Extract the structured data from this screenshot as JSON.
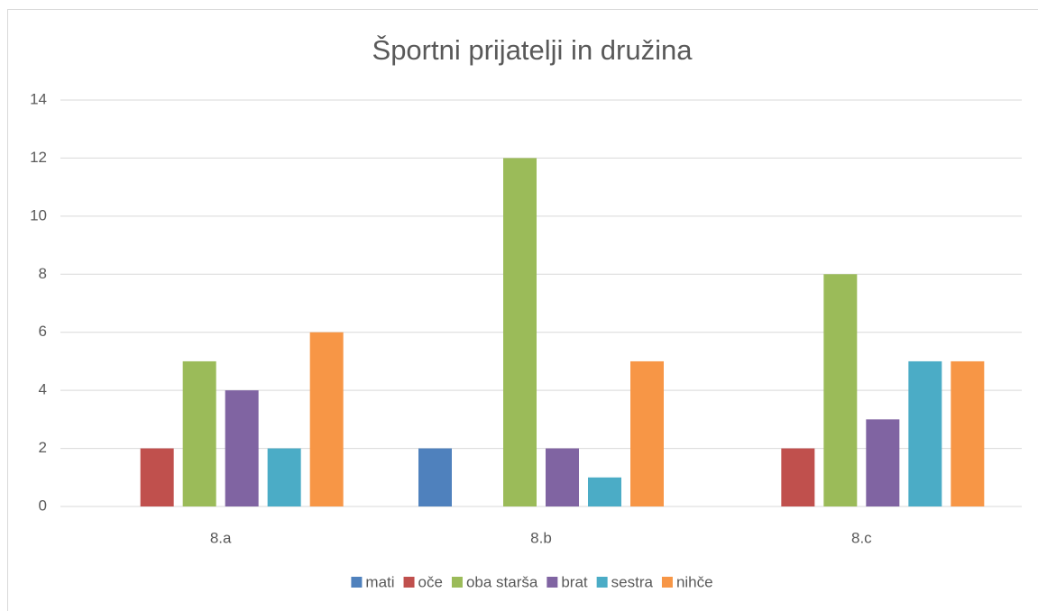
{
  "chart_data": {
    "type": "bar",
    "title": "Športni prijatelji in družina",
    "categories": [
      "8.a",
      "8.b",
      "8.c"
    ],
    "series": [
      {
        "name": "mati",
        "color": "#4f81bd",
        "values": [
          0,
          2,
          0
        ]
      },
      {
        "name": "oče",
        "color": "#c0504d",
        "values": [
          2,
          0,
          2
        ]
      },
      {
        "name": "oba starša",
        "color": "#9bbb59",
        "values": [
          5,
          12,
          8
        ]
      },
      {
        "name": "brat",
        "color": "#8064a2",
        "values": [
          4,
          2,
          3
        ]
      },
      {
        "name": "sestra",
        "color": "#4bacc6",
        "values": [
          2,
          1,
          5
        ]
      },
      {
        "name": "nihče",
        "color": "#f79646",
        "values": [
          6,
          5,
          5
        ]
      }
    ],
    "ylim": [
      0,
      14
    ],
    "yticks": [
      0,
      2,
      4,
      6,
      8,
      10,
      12,
      14
    ],
    "grid": true,
    "legend": "bottom"
  }
}
